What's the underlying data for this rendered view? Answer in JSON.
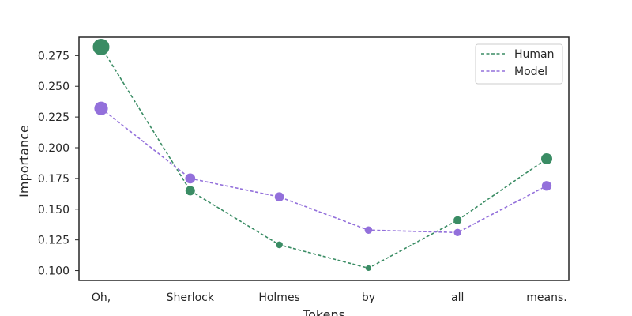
{
  "chart_data": {
    "type": "line",
    "categories": [
      "Oh,",
      "Sherlock",
      "Holmes",
      "by",
      "all",
      "means."
    ],
    "xlabel": "Tokens",
    "ylabel": "Importance",
    "ylim": [
      0.092,
      0.29
    ],
    "yticks": [
      0.1,
      0.125,
      0.15,
      0.175,
      0.2,
      0.225,
      0.25,
      0.275
    ],
    "ytick_labels": [
      "0.100",
      "0.125",
      "0.150",
      "0.175",
      "0.200",
      "0.225",
      "0.250",
      "0.275"
    ],
    "grid": false,
    "legend_position": "top-right",
    "marker_size_encodes_value": true,
    "series": [
      {
        "name": "Human",
        "color": "#3a8c64",
        "line_style": "dashed",
        "values": [
          0.282,
          0.165,
          0.121,
          0.102,
          0.141,
          0.191
        ]
      },
      {
        "name": "Model",
        "color": "#9370db",
        "line_style": "dashed",
        "values": [
          0.232,
          0.175,
          0.16,
          0.133,
          0.131,
          0.169
        ]
      }
    ]
  }
}
